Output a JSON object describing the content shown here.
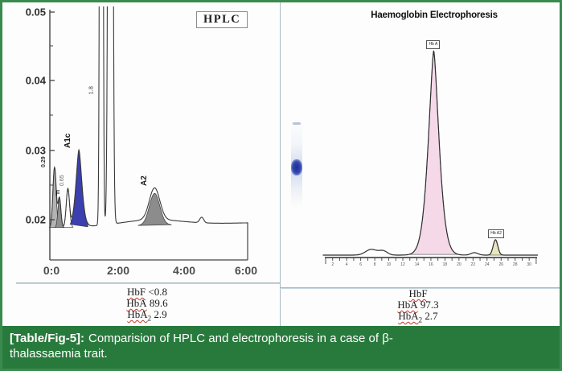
{
  "figure": {
    "caption": {
      "label": "[Table/Fig-5]:",
      "text": "Comparision of HPLC and electrophoresis in a case of β-thalassaemia trait."
    },
    "colors": {
      "border": "#3a8a4e",
      "caption_bg": "#287a3c",
      "divider": "#a8bcc6",
      "squiggle": "#c3392b",
      "a1c_fill": "#3c3fae",
      "a2_fill": "#8c8c8c",
      "hba_fill": "#f5d9e9",
      "hba2_fill": "#e7e7bd"
    }
  },
  "hplc": {
    "panel_label": "HPLC",
    "results": [
      {
        "name": "HbF",
        "sub": "",
        "value": "<0.8"
      },
      {
        "name": "HbA",
        "sub": "",
        "value": "89.6"
      },
      {
        "name": "HbA",
        "sub": "2",
        "value": "2.9"
      }
    ]
  },
  "electrophoresis": {
    "title": "Haemoglobin Electrophoresis",
    "results": [
      {
        "name": "HbF",
        "sub": "",
        "value": ""
      },
      {
        "name": "HbA",
        "sub": "",
        "value": "97.3"
      },
      {
        "name": "HbA",
        "sub": "2",
        "value": "2.7"
      }
    ]
  },
  "chart_data": [
    {
      "type": "area",
      "title": "HPLC",
      "x_unit": "minutes",
      "x_tick_labels": [
        "0:0",
        "2:00",
        "4:00",
        "6:00"
      ],
      "x_tick_minutes": [
        0,
        2,
        4,
        6
      ],
      "y_tick_labels": [
        "0.05",
        "0.04",
        "0.03",
        "0.02"
      ],
      "ylim": [
        0.02,
        0.05
      ],
      "baseline_absorbance": 0.0188,
      "peaks": [
        {
          "label": "0.29",
          "retention_time": 0.12,
          "apex_absorbance": 0.0275,
          "sigma_min": 0.05,
          "shape_p": 2,
          "fill": "#b3b3b3"
        },
        {
          "label": "F",
          "retention_time": 0.27,
          "apex_absorbance": 0.0231,
          "sigma_min": 0.045,
          "shape_p": 2,
          "fill": "#8f8f8f"
        },
        {
          "label": "0.65",
          "retention_time": 0.53,
          "apex_absorbance": 0.0243,
          "sigma_min": 0.05,
          "shape_p": 2,
          "fill": "#ffffff"
        },
        {
          "label": "A1c",
          "retention_time": 0.87,
          "apex_absorbance": 0.0299,
          "sigma_min": 0.085,
          "shape_p": 1.6,
          "fill": "#3c3fae"
        },
        {
          "label": "1.8",
          "retention_time": 1.56,
          "apex_absorbance": 0.38,
          "sigma_min": 0.028,
          "shape_p": 1.8,
          "fill": "none",
          "off_scale": true
        },
        {
          "label": "",
          "retention_time": 1.84,
          "apex_absorbance": 0.38,
          "sigma_min": 0.04,
          "shape_p": 1.8,
          "fill": "none",
          "off_scale": true
        },
        {
          "label": "A2",
          "retention_time": 3.2,
          "apex_absorbance": 0.0234,
          "sigma_min": 0.16,
          "shape_p": 2,
          "fill": "#8c8c8c"
        },
        {
          "label": "",
          "retention_time": 3.1,
          "apex_absorbance": 0.0196,
          "sigma_min": 0.9,
          "shape_p": 2,
          "fill": "none"
        },
        {
          "label": "",
          "retention_time": 4.65,
          "apex_absorbance": 0.0196,
          "sigma_min": 0.06,
          "shape_p": 2,
          "fill": "none"
        }
      ],
      "printed_results": {
        "HbF": "<0.8",
        "HbA": "89.6",
        "HbA2": "2.9"
      }
    },
    {
      "type": "area",
      "title": "Haemoglobin Electrophoresis",
      "x_tick_labels": [
        "2",
        "4",
        "6",
        "8",
        "10",
        "12",
        "14",
        "16",
        "18",
        "20",
        "22",
        "24",
        "26",
        "28",
        "30"
      ],
      "peaks": [
        {
          "label": "",
          "position": 7.5,
          "height_rel": 0.028,
          "sigma": 0.8,
          "shape_p": 2,
          "fill": "none"
        },
        {
          "label": "",
          "position": 9.2,
          "height_rel": 0.02,
          "sigma": 0.6,
          "shape_p": 2,
          "fill": "none"
        },
        {
          "label": "Hb A",
          "position": 16.4,
          "height_rel": 1.0,
          "sigma": 0.7,
          "shape_p": 1.5,
          "fill": "#f5d9e9"
        },
        {
          "label": "",
          "position": 22.2,
          "height_rel": 0.012,
          "sigma": 0.5,
          "shape_p": 2,
          "fill": "none"
        },
        {
          "label": "Hb A2",
          "position": 25.2,
          "height_rel": 0.075,
          "sigma": 0.33,
          "shape_p": 2,
          "fill": "#e7e7bd"
        }
      ],
      "printed_results": {
        "HbF": "",
        "HbA": "97.3",
        "HbA2": "2.7"
      }
    }
  ]
}
